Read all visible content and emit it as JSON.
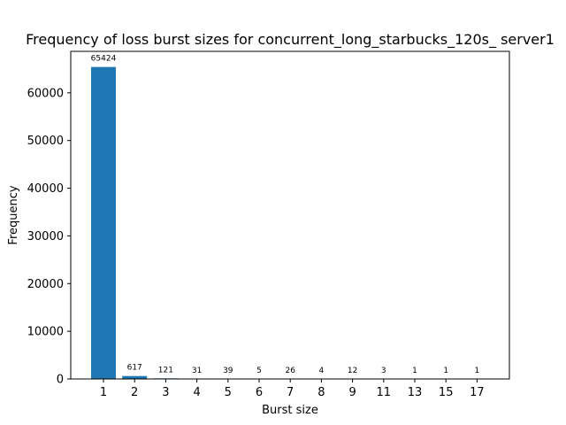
{
  "chart_data": {
    "type": "bar",
    "title": "Frequency of loss burst sizes for concurrent_long_starbucks_120s_ server1",
    "xlabel": "Burst size",
    "ylabel": "Frequency",
    "categories": [
      "1",
      "2",
      "3",
      "4",
      "5",
      "6",
      "7",
      "8",
      "9",
      "11",
      "13",
      "15",
      "17"
    ],
    "values": [
      65424,
      617,
      121,
      31,
      39,
      5,
      26,
      4,
      12,
      3,
      1,
      1,
      1
    ],
    "data_labels": [
      "65424",
      "617",
      "121",
      "31",
      "39",
      "5",
      "26",
      "4",
      "12",
      "3",
      "1",
      "1",
      "1"
    ],
    "ylim": [
      0,
      68695
    ],
    "yticks": [
      0,
      10000,
      20000,
      30000,
      40000,
      50000,
      60000
    ],
    "ytick_labels": [
      "0",
      "10000",
      "20000",
      "30000",
      "40000",
      "50000",
      "60000"
    ],
    "bar_color": "#1f77b4",
    "grid": false,
    "legend": "none"
  }
}
